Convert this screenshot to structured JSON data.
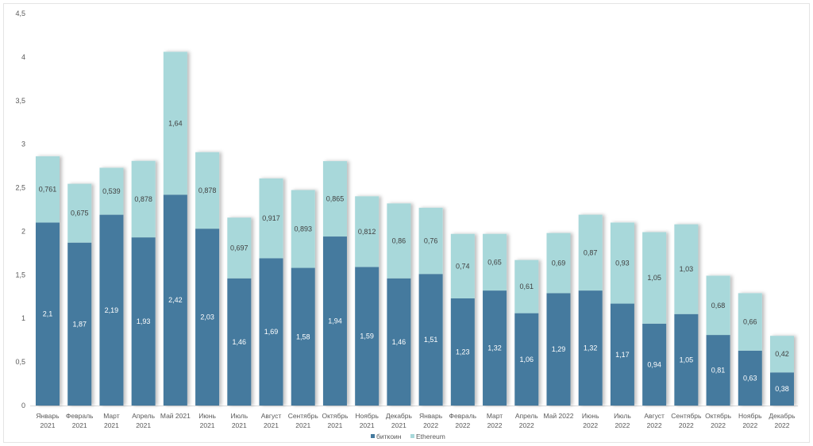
{
  "chart_data": {
    "type": "bar",
    "stacked": true,
    "title": "",
    "xlabel": "",
    "ylabel": "",
    "ylim": [
      0,
      4.5
    ],
    "yticks": [
      "0",
      "0,5",
      "1",
      "1,5",
      "2",
      "2,5",
      "3",
      "3,5",
      "4",
      "4,5"
    ],
    "grid": false,
    "legend": "bottom",
    "categories": [
      [
        "Январь",
        "2021"
      ],
      [
        "Февраль",
        "2021"
      ],
      [
        "Март",
        "2021"
      ],
      [
        "Апрель",
        "2021"
      ],
      [
        "Май 2021",
        ""
      ],
      [
        "Июнь",
        "2021"
      ],
      [
        "Июль",
        "2021"
      ],
      [
        "Август",
        "2021"
      ],
      [
        "Сентябрь",
        "2021"
      ],
      [
        "Октябрь",
        "2021"
      ],
      [
        "Ноябрь",
        "2021"
      ],
      [
        "Декабрь",
        "2021"
      ],
      [
        "Январь",
        "2022"
      ],
      [
        "Февраль",
        "2022"
      ],
      [
        "Март",
        "2022"
      ],
      [
        "Апрель",
        "2022"
      ],
      [
        "Май 2022",
        ""
      ],
      [
        "Июнь",
        "2022"
      ],
      [
        "Июль",
        "2022"
      ],
      [
        "Август",
        "2022"
      ],
      [
        "Сентябрь",
        "2022"
      ],
      [
        "Октябрь",
        "2022"
      ],
      [
        "Ноябрь",
        "2022"
      ],
      [
        "Декабрь",
        "2022"
      ]
    ],
    "series": [
      {
        "name": "биткоин",
        "color": "#457a9e",
        "values": [
          2.1,
          1.87,
          2.19,
          1.93,
          2.42,
          2.03,
          1.46,
          1.69,
          1.58,
          1.94,
          1.59,
          1.46,
          1.51,
          1.23,
          1.32,
          1.06,
          1.29,
          1.32,
          1.17,
          0.94,
          1.05,
          0.81,
          0.63,
          0.38
        ],
        "labels": [
          "2,1",
          "1,87",
          "2,19",
          "1,93",
          "2,42",
          "2,03",
          "1,46",
          "1,69",
          "1,58",
          "1,94",
          "1,59",
          "1,46",
          "1,51",
          "1,23",
          "1,32",
          "1,06",
          "1,29",
          "1,32",
          "1,17",
          "0,94",
          "1,05",
          "0,81",
          "0,63",
          "0,38"
        ]
      },
      {
        "name": "Ethereum",
        "color": "#a8d8da",
        "values": [
          0.761,
          0.675,
          0.539,
          0.878,
          1.64,
          0.878,
          0.697,
          0.917,
          0.893,
          0.865,
          0.812,
          0.86,
          0.76,
          0.74,
          0.65,
          0.61,
          0.69,
          0.87,
          0.93,
          1.05,
          1.03,
          0.68,
          0.66,
          0.42
        ],
        "labels": [
          "0,761",
          "0,675",
          "0,539",
          "0,878",
          "1,64",
          "0,878",
          "0,697",
          "0,917",
          "0,893",
          "0,865",
          "0,812",
          "0,86",
          "0,76",
          "0,74",
          "0,65",
          "0,61",
          "0,69",
          "0,87",
          "0,93",
          "1,05",
          "1,03",
          "0,68",
          "0,66",
          "0,42"
        ]
      }
    ]
  }
}
